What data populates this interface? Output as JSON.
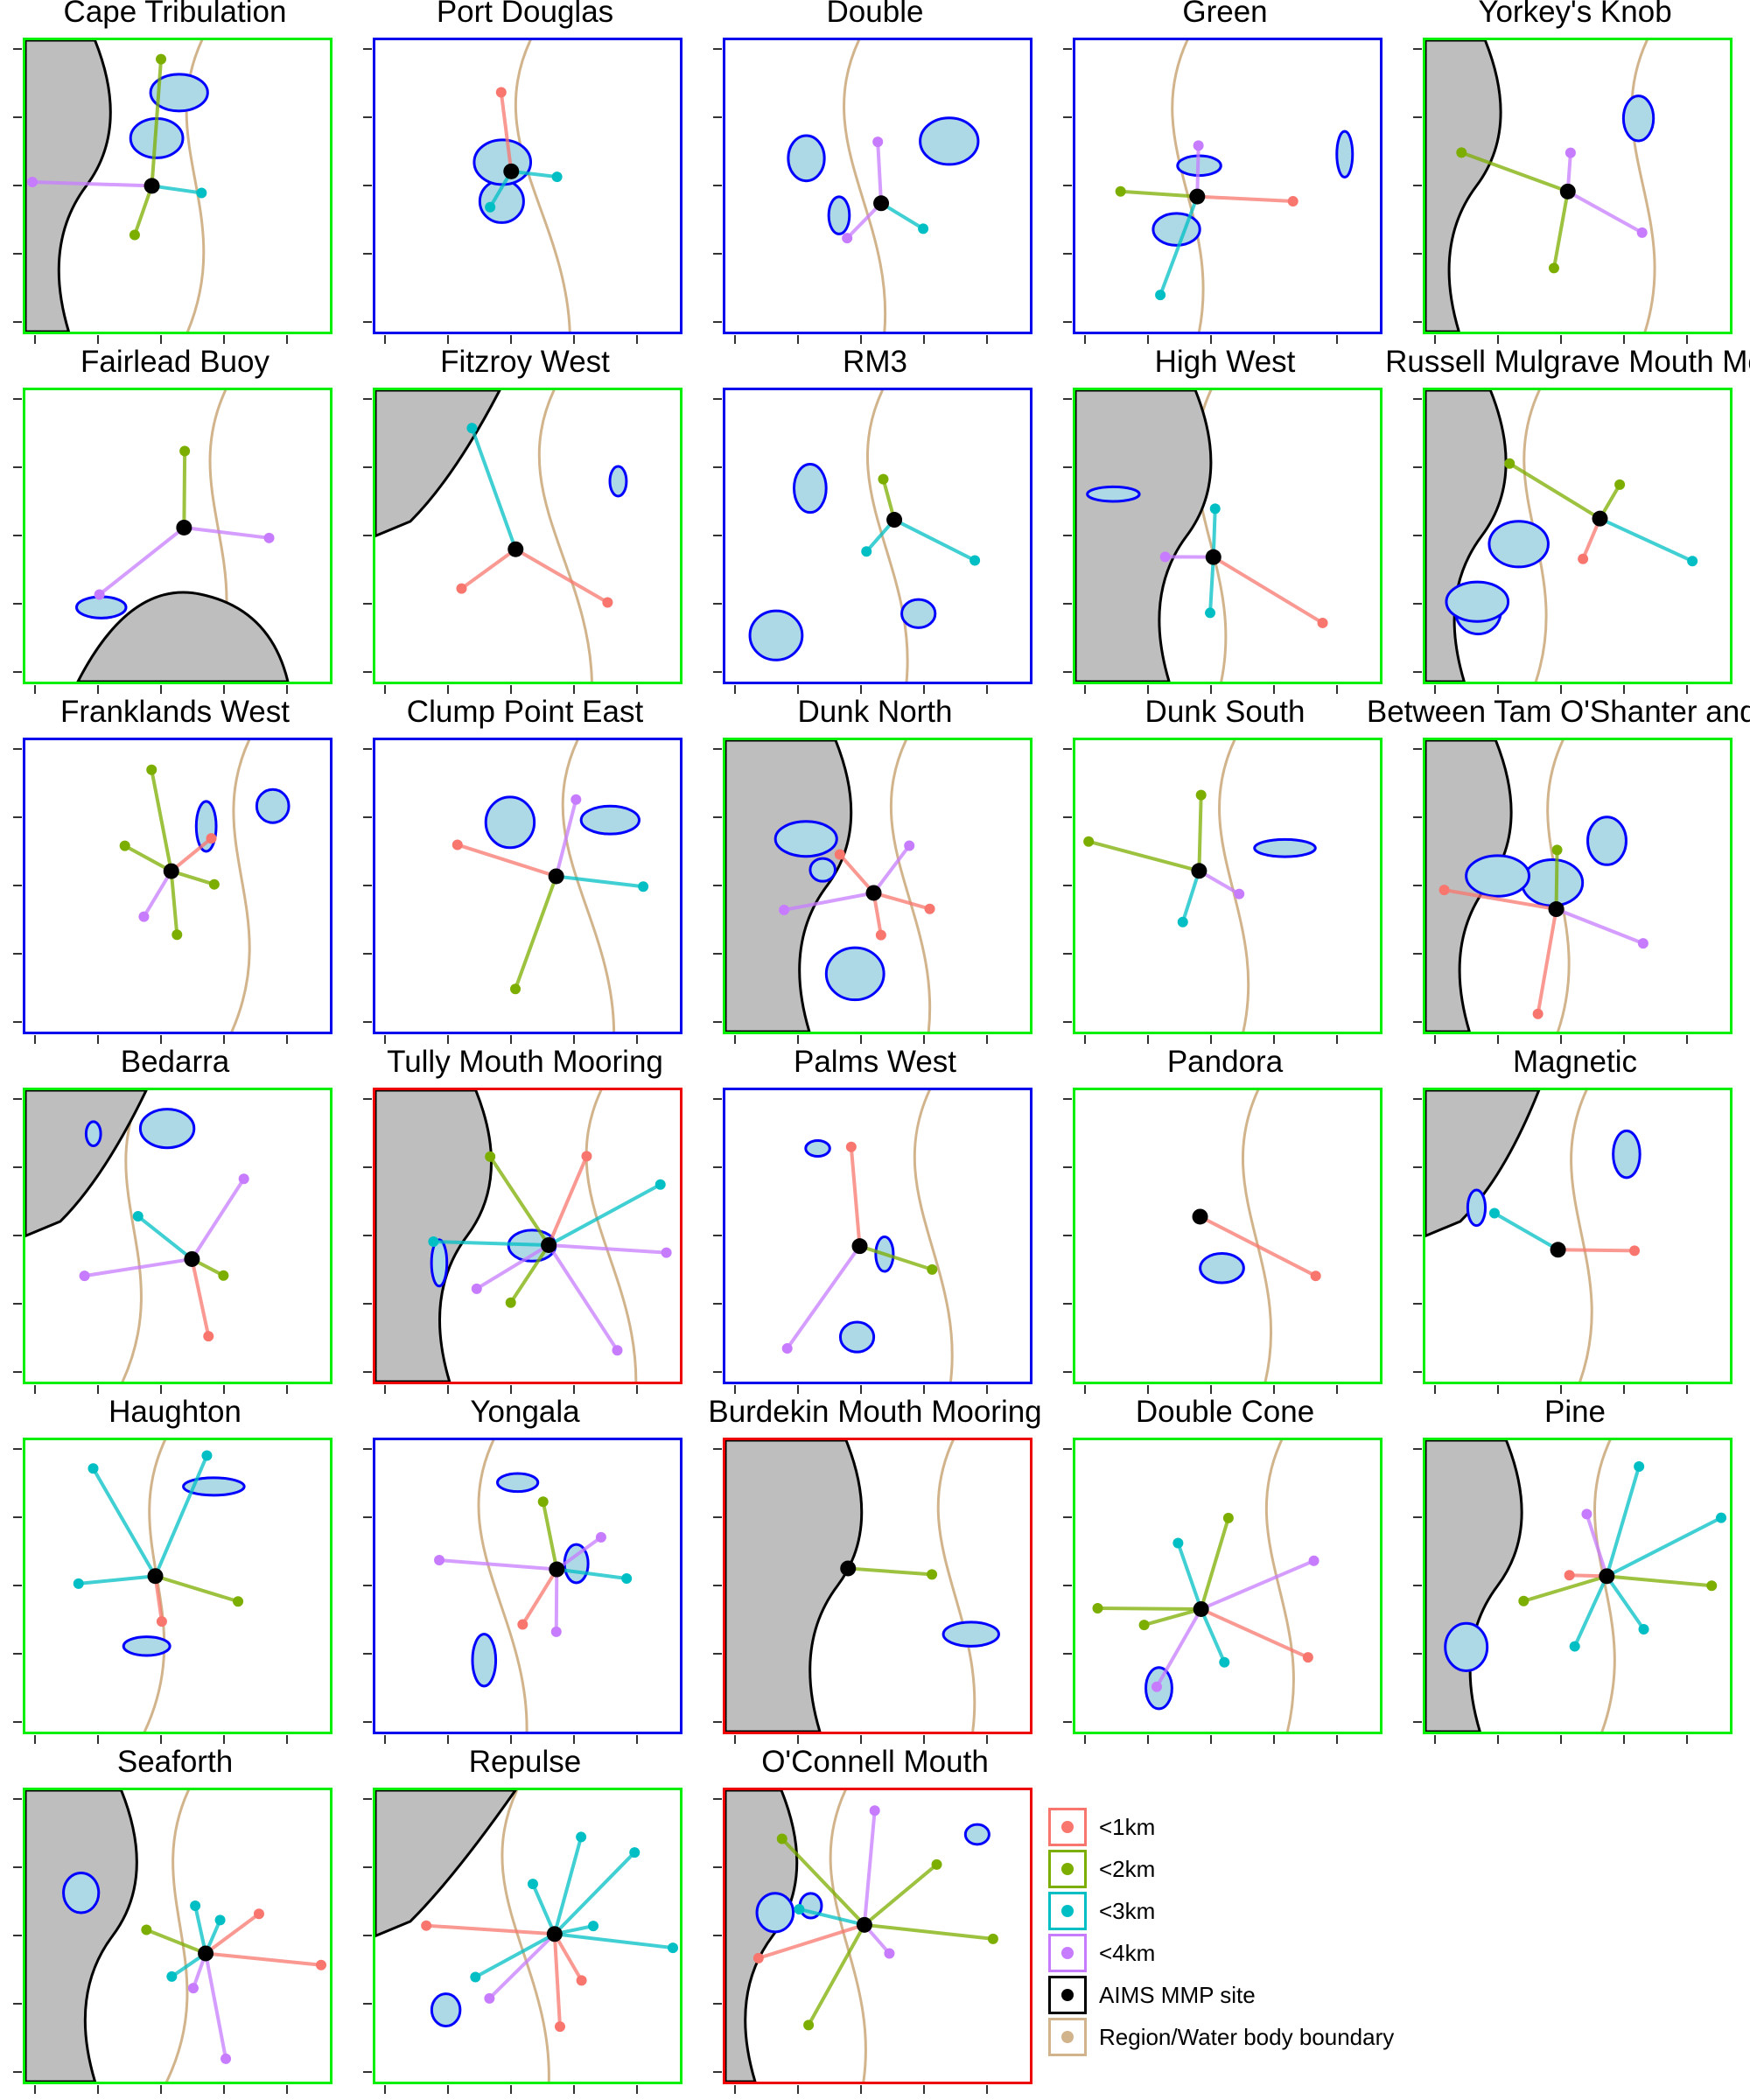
{
  "colors": {
    "good": "#00ee00",
    "mid": "#0000ee",
    "bad": "#ee0000",
    "land": "#bebebe",
    "reef_fill": "#add8e6",
    "reef_edge": "#0000ff",
    "boundary": "#d2b48c",
    "lt1": "#f8766d",
    "lt2": "#7cae00",
    "lt3": "#00bfc4",
    "lt4": "#c77cff",
    "site": "#000000"
  },
  "legend": [
    {
      "label": "<1km",
      "color": "#f8766d",
      "border": "#f8766d"
    },
    {
      "label": "<2km",
      "color": "#7cae00",
      "border": "#7cae00"
    },
    {
      "label": "<3km",
      "color": "#00bfc4",
      "border": "#00bfc4"
    },
    {
      "label": "<4km",
      "color": "#c77cff",
      "border": "#c77cff"
    },
    {
      "label": "AIMS MMP site",
      "color": "#000000",
      "border": "#000000"
    },
    {
      "label": "Region/Water body boundary",
      "color": "#d2b48c",
      "border": "#d2b48c"
    }
  ],
  "panels": [
    {
      "title": "Cape Tribulation",
      "border": "good"
    },
    {
      "title": "Port Douglas",
      "border": "mid"
    },
    {
      "title": "Double",
      "border": "mid"
    },
    {
      "title": "Green",
      "border": "mid"
    },
    {
      "title": "Yorkey's Knob",
      "border": "good"
    },
    {
      "title": "Fairlead Buoy",
      "border": "good"
    },
    {
      "title": "Fitzroy West",
      "border": "good"
    },
    {
      "title": "RM3",
      "border": "mid"
    },
    {
      "title": "High West",
      "border": "good"
    },
    {
      "title": "Russell Mulgrave Mouth Mo",
      "border": "good"
    },
    {
      "title": "Franklands West",
      "border": "mid"
    },
    {
      "title": "Clump Point East",
      "border": "mid"
    },
    {
      "title": "Dunk North",
      "border": "good"
    },
    {
      "title": "Dunk South",
      "border": "good"
    },
    {
      "title": "Between Tam O'Shanter and T",
      "border": "good"
    },
    {
      "title": "Bedarra",
      "border": "good"
    },
    {
      "title": "Tully Mouth Mooring",
      "border": "bad"
    },
    {
      "title": "Palms West",
      "border": "mid"
    },
    {
      "title": "Pandora",
      "border": "good"
    },
    {
      "title": "Magnetic",
      "border": "good"
    },
    {
      "title": "Haughton",
      "border": "good"
    },
    {
      "title": "Yongala",
      "border": "mid"
    },
    {
      "title": "Burdekin Mouth Mooring",
      "border": "bad"
    },
    {
      "title": "Double Cone",
      "border": "good"
    },
    {
      "title": "Pine",
      "border": "good"
    },
    {
      "title": "Seaforth",
      "border": "good"
    },
    {
      "title": "Repulse",
      "border": "good"
    },
    {
      "title": "O'Connell Mouth",
      "border": "bad"
    }
  ]
}
